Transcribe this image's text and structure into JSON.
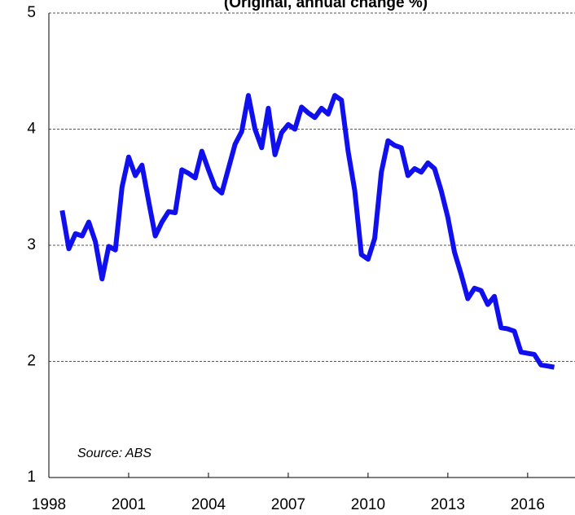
{
  "chart_data": {
    "type": "line",
    "title": "(Original, annual change %)",
    "annotation": "Source: ABS",
    "x": [
      1998.5,
      1998.75,
      1999,
      1999.25,
      1999.5,
      1999.75,
      2000,
      2000.25,
      2000.5,
      2000.75,
      2001,
      2001.25,
      2001.5,
      2001.75,
      2002,
      2002.25,
      2002.5,
      2002.75,
      2003,
      2003.25,
      2003.5,
      2003.75,
      2004,
      2004.25,
      2004.5,
      2004.75,
      2005,
      2005.25,
      2005.5,
      2005.75,
      2006,
      2006.25,
      2006.5,
      2006.75,
      2007,
      2007.25,
      2007.5,
      2007.75,
      2008,
      2008.25,
      2008.5,
      2008.75,
      2009,
      2009.25,
      2009.5,
      2009.75,
      2010,
      2010.25,
      2010.5,
      2010.75,
      2011,
      2011.25,
      2011.5,
      2011.75,
      2012,
      2012.25,
      2012.5,
      2012.75,
      2013,
      2013.25,
      2013.5,
      2013.75,
      2014,
      2014.25,
      2014.5,
      2014.75,
      2015,
      2015.25,
      2015.5,
      2015.75,
      2016,
      2016.25,
      2016.5,
      2016.75,
      2017
    ],
    "series": [
      {
        "color": "#1010ee",
        "values": [
          3.3,
          2.97,
          3.1,
          3.08,
          3.2,
          3.03,
          2.71,
          2.99,
          2.96,
          3.5,
          3.76,
          3.6,
          3.69,
          3.38,
          3.08,
          3.2,
          3.29,
          3.28,
          3.65,
          3.62,
          3.58,
          3.81,
          3.65,
          3.5,
          3.45,
          3.66,
          3.87,
          3.98,
          4.29,
          4.0,
          3.84,
          4.18,
          3.78,
          3.97,
          4.04,
          4.0,
          4.19,
          4.14,
          4.1,
          4.18,
          4.13,
          4.29,
          4.25,
          3.81,
          3.47,
          2.92,
          2.88,
          3.06,
          3.63,
          3.9,
          3.86,
          3.84,
          3.6,
          3.66,
          3.63,
          3.71,
          3.66,
          3.47,
          3.24,
          2.94,
          2.75,
          2.54,
          2.63,
          2.61,
          2.49,
          2.56,
          2.29,
          2.28,
          2.26,
          2.08,
          2.07,
          2.06,
          1.97,
          1.96,
          1.95
        ]
      }
    ],
    "xlim": [
      1998,
      2017.78
    ],
    "xticks": [
      1998,
      2001,
      2004,
      2007,
      2010,
      2013,
      2016
    ],
    "ylim": [
      1,
      5
    ],
    "yticks": [
      1,
      2,
      3,
      4,
      5
    ],
    "grid": true
  }
}
